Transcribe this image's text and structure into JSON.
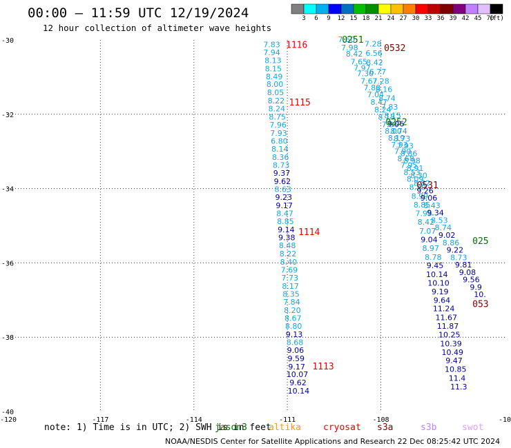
{
  "title": "00:00 — 11:59 UTC 12/19/2024",
  "subtitle": "12 hour collection of altimeter wave heights",
  "legend": {
    "colors": [
      "#808080",
      "#00ffff",
      "#00b0f0",
      "#0000ff",
      "#0070c0",
      "#00c000",
      "#009000",
      "#ffff00",
      "#ffc000",
      "#ff8000",
      "#ff0000",
      "#c00000",
      "#800000",
      "#800080",
      "#c080ff",
      "#e0c0ff",
      "#000000"
    ],
    "labels": [
      "3",
      "6",
      "9",
      "12",
      "15",
      "18",
      "21",
      "24",
      "27",
      "30",
      "33",
      "36",
      "39",
      "42",
      "45",
      "70",
      "(ft)"
    ]
  },
  "map": {
    "lon_range": [
      -120,
      -104
    ],
    "lat_range": [
      -40,
      -30
    ],
    "y_tick_labels": [
      "-30",
      "-32",
      "-34",
      "-36",
      "-38",
      "-40"
    ],
    "x_tick_labels": [
      "-120",
      "-117",
      "-114",
      "-111",
      "-108",
      "-10"
    ],
    "grid": "dotted"
  },
  "colors": {
    "light": "#17a5e0",
    "dark": "#00009b",
    "red": "#ee0000",
    "green": "#007000",
    "maroon": "#800000"
  },
  "tracks": [
    {
      "name": "track-1",
      "points": [
        {
          "lon": -111.5,
          "lat": -30.12,
          "v": "7.83",
          "c": "light"
        },
        {
          "lon": -111.5,
          "lat": -30.33,
          "v": "7.94",
          "c": "light"
        },
        {
          "lon": -111.46,
          "lat": -30.55,
          "v": "8.13",
          "c": "light"
        },
        {
          "lon": -111.45,
          "lat": -30.77,
          "v": "8.15",
          "c": "light"
        },
        {
          "lon": -111.42,
          "lat": -30.98,
          "v": "8.49",
          "c": "light"
        },
        {
          "lon": -111.4,
          "lat": -31.19,
          "v": "8.00",
          "c": "light"
        },
        {
          "lon": -111.38,
          "lat": -31.41,
          "v": "8.05",
          "c": "light"
        },
        {
          "lon": -111.36,
          "lat": -31.63,
          "v": "8.22",
          "c": "light"
        },
        {
          "lon": -111.34,
          "lat": -31.85,
          "v": "8.24",
          "c": "light"
        },
        {
          "lon": -111.32,
          "lat": -32.07,
          "v": "8.75",
          "c": "light"
        },
        {
          "lon": -111.3,
          "lat": -32.28,
          "v": "7.96",
          "c": "light"
        },
        {
          "lon": -111.28,
          "lat": -32.5,
          "v": "7.93",
          "c": "light"
        },
        {
          "lon": -111.26,
          "lat": -32.72,
          "v": "6.80",
          "c": "light"
        },
        {
          "lon": -111.24,
          "lat": -32.93,
          "v": "8.14",
          "c": "light"
        },
        {
          "lon": -111.22,
          "lat": -33.15,
          "v": "8.36",
          "c": "light"
        },
        {
          "lon": -111.2,
          "lat": -33.37,
          "v": "8.73",
          "c": "light"
        },
        {
          "lon": -111.18,
          "lat": -33.58,
          "v": "9.37",
          "c": "dark"
        },
        {
          "lon": -111.16,
          "lat": -33.8,
          "v": "9.62",
          "c": "dark"
        },
        {
          "lon": -111.14,
          "lat": -34.02,
          "v": "8.63",
          "c": "light"
        },
        {
          "lon": -111.12,
          "lat": -34.23,
          "v": "9.23",
          "c": "dark"
        },
        {
          "lon": -111.1,
          "lat": -34.45,
          "v": "9.17",
          "c": "dark"
        },
        {
          "lon": -111.08,
          "lat": -34.67,
          "v": "8.47",
          "c": "light"
        },
        {
          "lon": -111.06,
          "lat": -34.88,
          "v": "8.85",
          "c": "light"
        },
        {
          "lon": -111.04,
          "lat": -35.1,
          "v": "9.14",
          "c": "dark"
        },
        {
          "lon": -111.02,
          "lat": -35.32,
          "v": "9.38",
          "c": "dark"
        },
        {
          "lon": -111.0,
          "lat": -35.53,
          "v": "8.48",
          "c": "light"
        },
        {
          "lon": -110.98,
          "lat": -35.75,
          "v": "8.22",
          "c": "light"
        },
        {
          "lon": -110.96,
          "lat": -35.97,
          "v": "8.40",
          "c": "light"
        },
        {
          "lon": -110.94,
          "lat": -36.19,
          "v": "7.69",
          "c": "light"
        },
        {
          "lon": -110.92,
          "lat": -36.4,
          "v": "7.73",
          "c": "light"
        },
        {
          "lon": -110.9,
          "lat": -36.62,
          "v": "8.17",
          "c": "light"
        },
        {
          "lon": -110.88,
          "lat": -36.84,
          "v": "8.35",
          "c": "light"
        },
        {
          "lon": -110.86,
          "lat": -37.05,
          "v": "7.84",
          "c": "light"
        },
        {
          "lon": -110.84,
          "lat": -37.27,
          "v": "8.20",
          "c": "light"
        },
        {
          "lon": -110.82,
          "lat": -37.49,
          "v": "8.67",
          "c": "light"
        },
        {
          "lon": -110.8,
          "lat": -37.7,
          "v": "8.80",
          "c": "light"
        },
        {
          "lon": -110.78,
          "lat": -37.92,
          "v": "9.13",
          "c": "dark"
        },
        {
          "lon": -110.76,
          "lat": -38.14,
          "v": "8.68",
          "c": "light"
        },
        {
          "lon": -110.74,
          "lat": -38.35,
          "v": "9.06",
          "c": "dark"
        },
        {
          "lon": -110.72,
          "lat": -38.57,
          "v": "9.59",
          "c": "dark"
        },
        {
          "lon": -110.7,
          "lat": -38.79,
          "v": "9.17",
          "c": "dark"
        },
        {
          "lon": -110.68,
          "lat": -39.0,
          "v": "10.07",
          "c": "dark"
        },
        {
          "lon": -110.66,
          "lat": -39.22,
          "v": "9.62",
          "c": "dark"
        },
        {
          "lon": -110.64,
          "lat": -39.44,
          "v": "10.14",
          "c": "dark"
        }
      ]
    },
    {
      "name": "track-2",
      "points": [
        {
          "lon": -109.1,
          "lat": -29.98,
          "v": "7.60",
          "c": "light"
        },
        {
          "lon": -109.0,
          "lat": -30.2,
          "v": "7.98",
          "c": "light"
        },
        {
          "lon": -108.85,
          "lat": -30.37,
          "v": "8.42",
          "c": "light"
        },
        {
          "lon": -108.7,
          "lat": -30.58,
          "v": "7.65",
          "c": "light"
        },
        {
          "lon": -108.6,
          "lat": -30.75,
          "v": "7.97",
          "c": "light"
        },
        {
          "lon": -108.5,
          "lat": -30.9,
          "v": "7.30",
          "c": "light"
        },
        {
          "lon": -108.38,
          "lat": -31.1,
          "v": "7.67",
          "c": "light"
        },
        {
          "lon": -108.28,
          "lat": -31.28,
          "v": "7.88",
          "c": "light"
        },
        {
          "lon": -108.17,
          "lat": -31.47,
          "v": "7.04",
          "c": "light"
        },
        {
          "lon": -108.06,
          "lat": -31.67,
          "v": "8.47",
          "c": "light"
        },
        {
          "lon": -107.94,
          "lat": -31.87,
          "v": "8.24",
          "c": "light"
        },
        {
          "lon": -107.82,
          "lat": -32.07,
          "v": "8.18",
          "c": "light"
        },
        {
          "lon": -107.7,
          "lat": -32.27,
          "v": "7.86",
          "c": "light"
        },
        {
          "lon": -107.6,
          "lat": -32.45,
          "v": "8.00",
          "c": "light"
        },
        {
          "lon": -107.5,
          "lat": -32.63,
          "v": "8.19",
          "c": "light"
        },
        {
          "lon": -107.4,
          "lat": -32.82,
          "v": "7.93",
          "c": "light"
        },
        {
          "lon": -107.3,
          "lat": -33.0,
          "v": "7.90",
          "c": "light"
        },
        {
          "lon": -107.2,
          "lat": -33.19,
          "v": "8.68",
          "c": "light"
        },
        {
          "lon": -107.1,
          "lat": -33.37,
          "v": "7.95",
          "c": "light"
        },
        {
          "lon": -107.0,
          "lat": -33.56,
          "v": "8.53",
          "c": "light"
        },
        {
          "lon": -106.9,
          "lat": -33.74,
          "v": "8.09",
          "c": "light"
        },
        {
          "lon": -106.82,
          "lat": -33.96,
          "v": "8.50",
          "c": "light"
        },
        {
          "lon": -106.75,
          "lat": -34.2,
          "v": "8.99",
          "c": "light"
        },
        {
          "lon": -106.68,
          "lat": -34.43,
          "v": "8.85",
          "c": "light"
        },
        {
          "lon": -106.62,
          "lat": -34.67,
          "v": "7.95",
          "c": "light"
        },
        {
          "lon": -106.55,
          "lat": -34.9,
          "v": "8.42",
          "c": "light"
        },
        {
          "lon": -106.5,
          "lat": -35.14,
          "v": "7.07",
          "c": "light"
        },
        {
          "lon": -106.45,
          "lat": -35.37,
          "v": "9.04",
          "c": "dark"
        },
        {
          "lon": -106.4,
          "lat": -35.6,
          "v": "8.97",
          "c": "light"
        },
        {
          "lon": -106.32,
          "lat": -35.84,
          "v": "8.78",
          "c": "light"
        },
        {
          "lon": -106.26,
          "lat": -36.07,
          "v": "9.45",
          "c": "dark"
        },
        {
          "lon": -106.2,
          "lat": -36.31,
          "v": "10.14",
          "c": "dark"
        },
        {
          "lon": -106.15,
          "lat": -36.54,
          "v": "10.10",
          "c": "dark"
        },
        {
          "lon": -106.1,
          "lat": -36.77,
          "v": "9.19",
          "c": "dark"
        },
        {
          "lon": -106.04,
          "lat": -37.0,
          "v": "9.64",
          "c": "dark"
        },
        {
          "lon": -105.98,
          "lat": -37.23,
          "v": "11.24",
          "c": "dark"
        },
        {
          "lon": -105.9,
          "lat": -37.47,
          "v": "11.67",
          "c": "dark"
        },
        {
          "lon": -105.85,
          "lat": -37.7,
          "v": "11.87",
          "c": "dark"
        },
        {
          "lon": -105.8,
          "lat": -37.93,
          "v": "10.25",
          "c": "dark"
        },
        {
          "lon": -105.75,
          "lat": -38.17,
          "v": "10.39",
          "c": "dark"
        },
        {
          "lon": -105.7,
          "lat": -38.4,
          "v": "10.49",
          "c": "dark"
        },
        {
          "lon": -105.65,
          "lat": -38.63,
          "v": "9.47",
          "c": "dark"
        },
        {
          "lon": -105.6,
          "lat": -38.86,
          "v": "10.85",
          "c": "dark"
        },
        {
          "lon": -105.55,
          "lat": -39.1,
          "v": "11.4",
          "c": "dark"
        },
        {
          "lon": -105.5,
          "lat": -39.33,
          "v": "11.3",
          "c": "dark"
        }
      ]
    },
    {
      "name": "track-3",
      "points": [
        {
          "lon": -108.25,
          "lat": -30.1,
          "v": "7.28",
          "c": "light"
        },
        {
          "lon": -108.22,
          "lat": -30.35,
          "v": "6.56",
          "c": "light"
        },
        {
          "lon": -108.2,
          "lat": -30.6,
          "v": "8.42",
          "c": "light"
        },
        {
          "lon": -108.1,
          "lat": -30.85,
          "v": "6.77",
          "c": "light"
        },
        {
          "lon": -108.0,
          "lat": -31.1,
          "v": "7.28",
          "c": "light"
        },
        {
          "lon": -107.9,
          "lat": -31.33,
          "v": "8.16",
          "c": "light"
        },
        {
          "lon": -107.8,
          "lat": -31.57,
          "v": "8.74",
          "c": "light"
        },
        {
          "lon": -107.72,
          "lat": -31.8,
          "v": "7.83",
          "c": "light"
        },
        {
          "lon": -107.62,
          "lat": -32.03,
          "v": "8.15",
          "c": "light"
        },
        {
          "lon": -107.52,
          "lat": -32.25,
          "v": "9.06",
          "c": "dark"
        },
        {
          "lon": -107.42,
          "lat": -32.45,
          "v": "8.74",
          "c": "light"
        },
        {
          "lon": -107.32,
          "lat": -32.65,
          "v": "8.73",
          "c": "light"
        },
        {
          "lon": -107.22,
          "lat": -32.85,
          "v": "7.93",
          "c": "light"
        },
        {
          "lon": -107.1,
          "lat": -33.05,
          "v": "8.86",
          "c": "light"
        },
        {
          "lon": -107.0,
          "lat": -33.25,
          "v": "8.98",
          "c": "light"
        },
        {
          "lon": -106.9,
          "lat": -33.45,
          "v": "8.91",
          "c": "light"
        },
        {
          "lon": -106.78,
          "lat": -33.65,
          "v": "8.30",
          "c": "light"
        },
        {
          "lon": -106.68,
          "lat": -33.85,
          "v": "8.82",
          "c": "light"
        },
        {
          "lon": -106.58,
          "lat": -34.05,
          "v": "9.26",
          "c": "dark"
        },
        {
          "lon": -106.46,
          "lat": -34.25,
          "v": "9.06",
          "c": "dark"
        },
        {
          "lon": -106.36,
          "lat": -34.45,
          "v": "8.43",
          "c": "light"
        },
        {
          "lon": -106.25,
          "lat": -34.65,
          "v": "9.34",
          "c": "dark"
        },
        {
          "lon": -106.12,
          "lat": -34.85,
          "v": "8.53",
          "c": "light"
        },
        {
          "lon": -106.0,
          "lat": -35.05,
          "v": "8.74",
          "c": "light"
        },
        {
          "lon": -105.88,
          "lat": -35.25,
          "v": "9.02",
          "c": "dark"
        },
        {
          "lon": -105.75,
          "lat": -35.45,
          "v": "8.86",
          "c": "light"
        },
        {
          "lon": -105.62,
          "lat": -35.65,
          "v": "9.22",
          "c": "dark"
        },
        {
          "lon": -105.5,
          "lat": -35.85,
          "v": "8.73",
          "c": "light"
        },
        {
          "lon": -105.35,
          "lat": -36.05,
          "v": "9.81",
          "c": "dark"
        },
        {
          "lon": -105.22,
          "lat": -36.25,
          "v": "9.08",
          "c": "dark"
        },
        {
          "lon": -105.1,
          "lat": -36.45,
          "v": "9.56",
          "c": "dark"
        },
        {
          "lon": -104.95,
          "lat": -36.65,
          "v": "9.9",
          "c": "dark"
        },
        {
          "lon": -104.82,
          "lat": -36.85,
          "v": "10.",
          "c": "dark"
        }
      ]
    }
  ],
  "time_labels": [
    {
      "lon": -110.7,
      "lat": -30.12,
      "text": "1116",
      "c": "red"
    },
    {
      "lon": -110.6,
      "lat": -31.67,
      "text": "1115",
      "c": "red"
    },
    {
      "lon": -110.3,
      "lat": -35.16,
      "text": "1114",
      "c": "red"
    },
    {
      "lon": -109.85,
      "lat": -38.78,
      "text": "1113",
      "c": "red"
    },
    {
      "lon": -108.9,
      "lat": -29.98,
      "text": "0251",
      "c": "green"
    },
    {
      "lon": -107.5,
      "lat": -32.2,
      "text": "0252",
      "c": "green"
    },
    {
      "lon": -104.8,
      "lat": -35.4,
      "text": "025",
      "c": "green"
    },
    {
      "lon": -107.55,
      "lat": -30.2,
      "text": "0532",
      "c": "maroon"
    },
    {
      "lon": -106.5,
      "lat": -33.9,
      "text": "0531",
      "c": "maroon"
    },
    {
      "lon": -104.8,
      "lat": -37.1,
      "text": "053",
      "c": "maroon"
    }
  ],
  "note": "note: 1) Time is in UTC; 2) SWH is in feet",
  "satellites": [
    {
      "name": "jason3",
      "color": "#007000",
      "overlap": true
    },
    {
      "name": "altika",
      "color": "#ff9900"
    },
    {
      "name": "cryosat",
      "color": "#ee0000"
    },
    {
      "name": "s3a",
      "color": "#800000"
    },
    {
      "name": "s3b",
      "color": "#c080ff"
    },
    {
      "name": "swot",
      "color": "#e0a0ff"
    }
  ],
  "footer": "NOAA/NESDIS Center for Satellite Applications and Research   22 Dec 08:25:42 UTC 2024"
}
